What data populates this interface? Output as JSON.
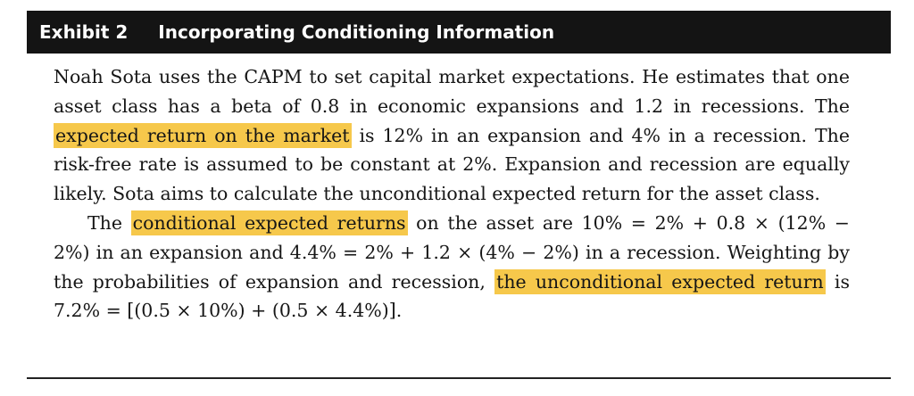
{
  "exhibit": {
    "number": "Exhibit 2",
    "title": "Incorporating Conditioning Information"
  },
  "paragraph1": {
    "part1": "Noah Sota uses the CAPM to set capital market expectations. He estimates that one asset class has a beta of 0.8 in economic expansions and 1.2 in recessions. The ",
    "highlight1": "expected return on the market",
    "part2": " is 12% in an expansion and 4% in a recession. The risk-free rate is assumed to be constant at 2%. Expansion and recession are equally likely. Sota aims to calculate the unconditional expected return for the asset class."
  },
  "paragraph2": {
    "part1": "The ",
    "highlight1": "conditional expected returns",
    "part2": " on the asset are 10% = 2% + 0.8 × (12% − 2%) in an expansion and 4.4% = 2% + 1.2 × (4% − 2%) in a recession. Weighting by the probabilities of expansion and recession, ",
    "highlight2": "the unconditional expected return",
    "part3": " is 7.2% = [(0.5 × 10%) + (0.5 × 4.4%)]."
  },
  "colors": {
    "highlight": "#f6c84b",
    "header_bg": "#141414"
  }
}
